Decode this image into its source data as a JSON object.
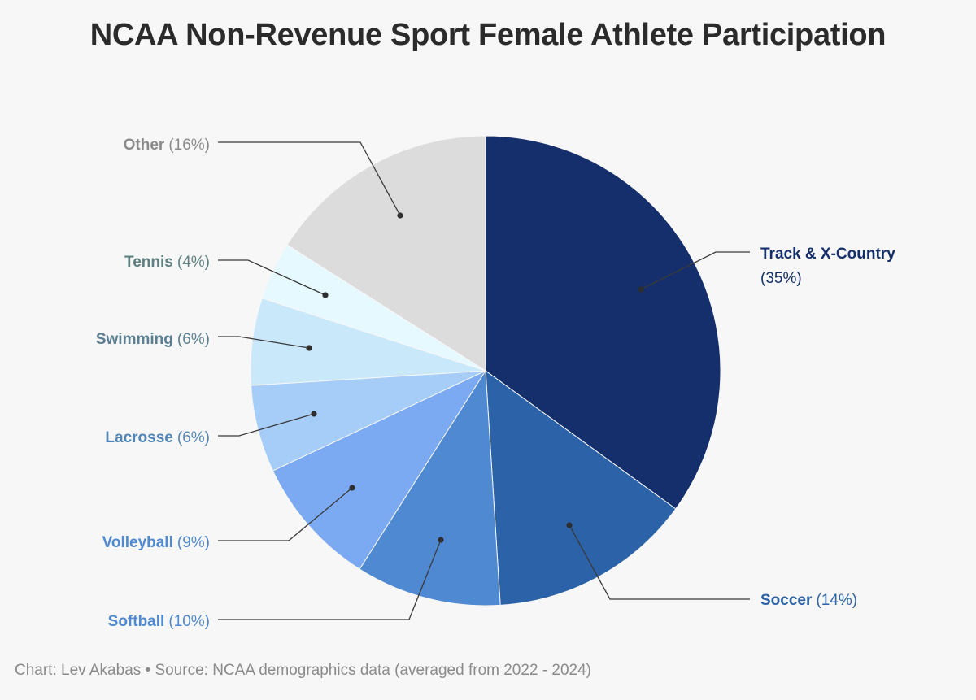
{
  "chart_data": {
    "type": "pie",
    "title": "NCAA Non-Revenue Sport Female Athlete Participation",
    "slices": [
      {
        "label": "Track & X-Country",
        "pct_text": "(35%)",
        "value": 35,
        "color": "#142f6b",
        "label_color": "#142f6b"
      },
      {
        "label": "Soccer",
        "pct_text": "(14%)",
        "value": 14,
        "color": "#2c63a8",
        "label_color": "#2c63a8"
      },
      {
        "label": "Softball",
        "pct_text": "(10%)",
        "value": 10,
        "color": "#4f89d1",
        "label_color": "#4f89d1"
      },
      {
        "label": "Volleyball",
        "pct_text": "(9%)",
        "value": 9,
        "color": "#7caaf2",
        "label_color": "#4f89d1"
      },
      {
        "label": "Lacrosse",
        "pct_text": "(6%)",
        "value": 6,
        "color": "#a6cdf8",
        "label_color": "#5186b8"
      },
      {
        "label": "Swimming",
        "pct_text": "(6%)",
        "value": 6,
        "color": "#c9e8fa",
        "label_color": "#5b7f92"
      },
      {
        "label": "Tennis",
        "pct_text": "(4%)",
        "value": 4,
        "color": "#e6f9fe",
        "label_color": "#5f8080"
      },
      {
        "label": "Other",
        "pct_text": "(16%)",
        "value": 16,
        "color": "#dcdcdc",
        "label_color": "#8a8a8a"
      }
    ]
  },
  "footer": "Chart: Lev Akabas • Source: NCAA demographics data (averaged from 2022 - 2024)"
}
